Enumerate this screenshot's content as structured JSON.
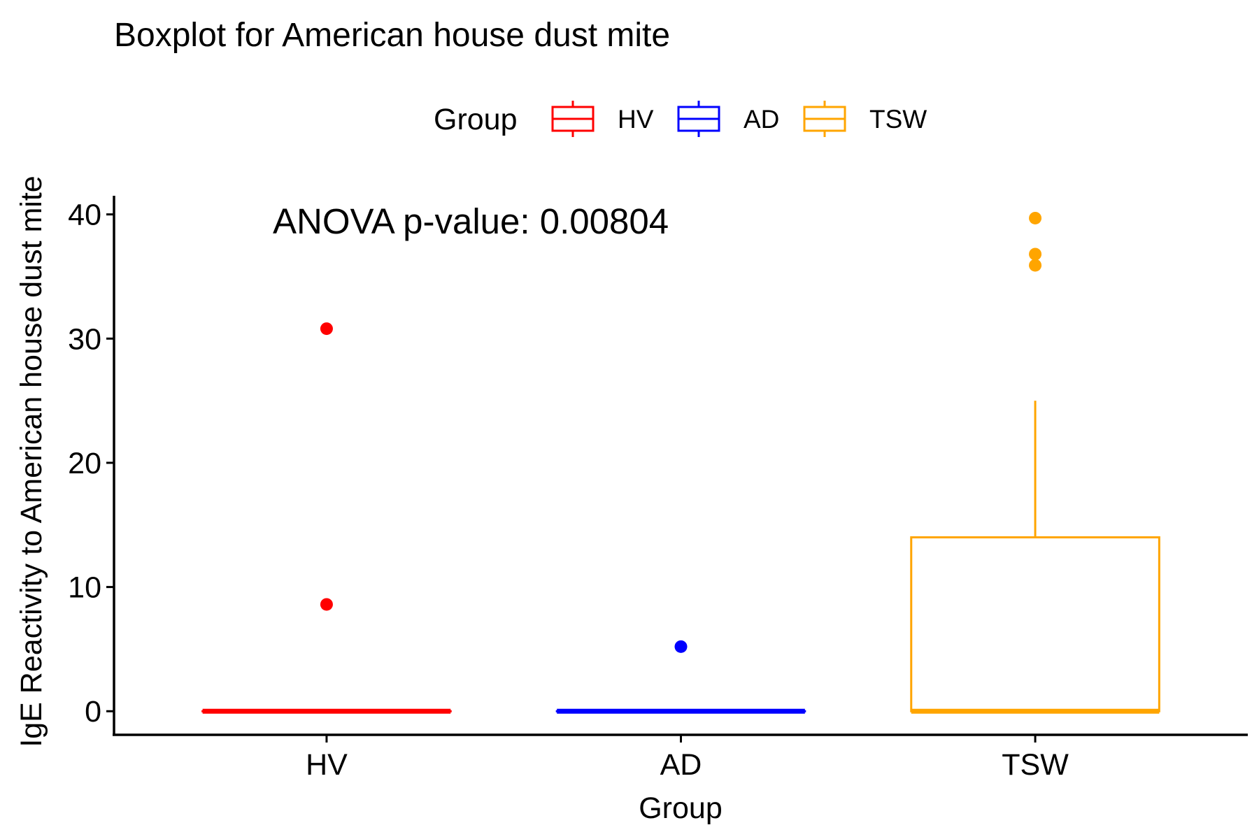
{
  "chart_data": {
    "type": "boxplot",
    "title": "Boxplot for American house dust mite",
    "xlabel": "Group",
    "ylabel": "IgE Reactivity to American house dust mite",
    "annotation": "ANOVA p-value: 0.00804",
    "ylim": [
      -1.9,
      41.5
    ],
    "yticks": [
      0,
      10,
      20,
      30,
      40
    ],
    "grid": false,
    "legend": {
      "title": "Group",
      "position": "top",
      "entries": [
        "HV",
        "AD",
        "TSW"
      ]
    },
    "categories": [
      "HV",
      "AD",
      "TSW"
    ],
    "series": [
      {
        "name": "HV",
        "color": "#ff0000",
        "min": 0,
        "q1": 0,
        "median": 0,
        "q3": 0,
        "max": 0,
        "outliers": [
          8.6,
          30.8
        ]
      },
      {
        "name": "AD",
        "color": "#0000ff",
        "min": 0,
        "q1": 0,
        "median": 0,
        "q3": 0,
        "max": 0,
        "outliers": [
          5.2
        ]
      },
      {
        "name": "TSW",
        "color": "#ffa500",
        "min": 0,
        "q1": 0,
        "median": 0,
        "q3": 14,
        "max": 25,
        "outliers": [
          35.9,
          36.8,
          39.7
        ]
      }
    ]
  }
}
